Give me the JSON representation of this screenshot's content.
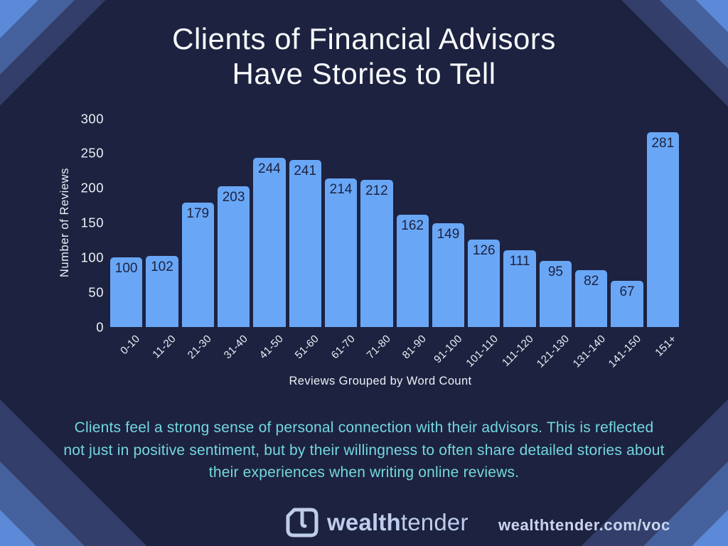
{
  "title": {
    "line1": "Clients of Financial Advisors",
    "line2": "Have Stories to Tell"
  },
  "chart_data": {
    "type": "bar",
    "title": "Clients of Financial Advisors Have Stories to Tell",
    "categories": [
      "0-10",
      "11-20",
      "21-30",
      "31-40",
      "41-50",
      "51-60",
      "61-70",
      "71-80",
      "81-90",
      "91-100",
      "101-110",
      "111-120",
      "121-130",
      "131-140",
      "141-150",
      "151+"
    ],
    "values": [
      100,
      102,
      179,
      203,
      244,
      241,
      214,
      212,
      162,
      149,
      126,
      111,
      95,
      82,
      67,
      281
    ],
    "xlabel": "Reviews Grouped by Word Count",
    "ylabel": "Number of Reviews",
    "yticks": [
      0,
      50,
      100,
      150,
      200,
      250,
      300
    ],
    "ylim": [
      0,
      300
    ],
    "grid": false,
    "legend": false,
    "bar_color": "#69a7f6",
    "value_label_color": "#1d2240"
  },
  "note": "Clients feel a strong sense of personal connection with their advisors. This is reflected not just in positive sentiment, but by their willingness to often share detailed stories about their experiences when writing online reviews.",
  "footer": {
    "brand_bold": "wealth",
    "brand_light": "tender",
    "logo_icon": "wealthtender-glass-icon",
    "url": "wealthtender.com/voc"
  },
  "colors": {
    "background": "#1d2240",
    "stripe_bright": "#5c8ad8",
    "stripe_medium": "#45629e",
    "stripe_dark": "#333f6a",
    "bar": "#69a7f6",
    "text_white": "#ecf0f6",
    "note_teal": "#73d8dd",
    "brand_periwinkle": "#bfcdec"
  }
}
